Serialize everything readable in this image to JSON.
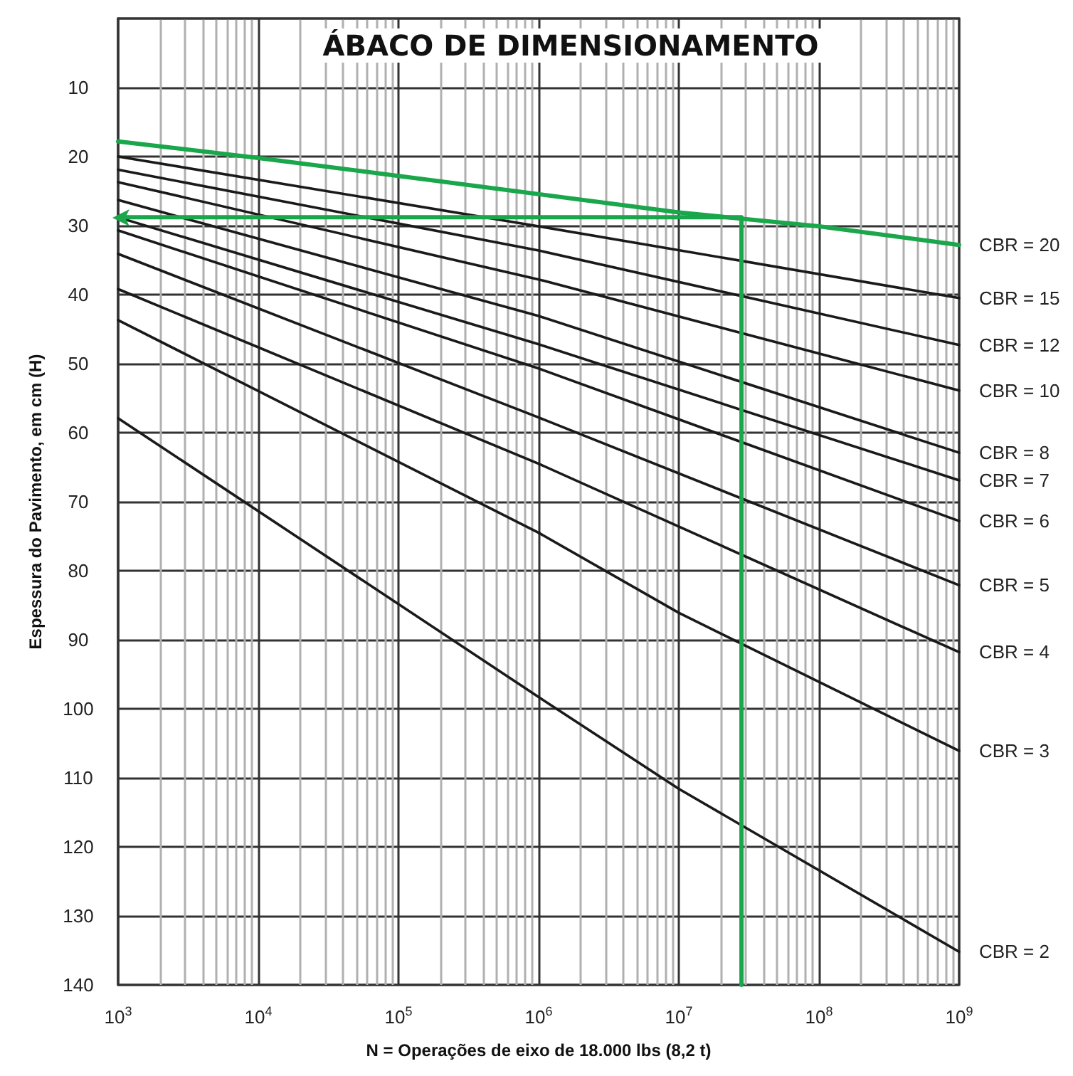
{
  "chart_data": {
    "type": "line",
    "title": "ÁBACO DE DIMENSIONAMENTO",
    "xlabel": "N = Operações de eixo de 18.000 lbs (8,2 t)",
    "ylabel": "Espessura do Pavimento, em cm (H)",
    "log": "x",
    "xlim": [
      1000,
      1000000000
    ],
    "ylim": [
      140,
      0
    ],
    "xticks": [
      {
        "value": 1000,
        "label": "10$^{3}$"
      },
      {
        "value": 2000,
        "label": null
      },
      {
        "value": 3000,
        "label": null
      },
      {
        "value": 4000,
        "label": null
      },
      {
        "value": 5000,
        "label": null
      },
      {
        "value": 6000,
        "label": null
      },
      {
        "value": 7000,
        "label": null
      },
      {
        "value": 8000,
        "label": null
      },
      {
        "value": 9000,
        "label": null
      },
      {
        "value": 10000,
        "label": "10$^{4}$"
      },
      {
        "value": 20000,
        "label": null
      },
      {
        "value": 30000,
        "label": null
      },
      {
        "value": 40000,
        "label": null
      },
      {
        "value": 50000,
        "label": null
      },
      {
        "value": 60000,
        "label": null
      },
      {
        "value": 70000,
        "label": null
      },
      {
        "value": 80000,
        "label": null
      },
      {
        "value": 90000,
        "label": null
      },
      {
        "value": 100000,
        "label": "10$^{5}$"
      },
      {
        "value": 200000,
        "label": null
      },
      {
        "value": 300000,
        "label": null
      },
      {
        "value": 400000,
        "label": null
      },
      {
        "value": 500000,
        "label": null
      },
      {
        "value": 600000,
        "label": null
      },
      {
        "value": 700000,
        "label": null
      },
      {
        "value": 800000,
        "label": null
      },
      {
        "value": 900000,
        "label": null
      },
      {
        "value": 1000000,
        "label": "10$^{6}$"
      },
      {
        "value": 2000000,
        "label": null
      },
      {
        "value": 3000000,
        "label": null
      },
      {
        "value": 4000000,
        "label": null
      },
      {
        "value": 5000000,
        "label": null
      },
      {
        "value": 6000000,
        "label": null
      },
      {
        "value": 7000000,
        "label": null
      },
      {
        "value": 8000000,
        "label": null
      },
      {
        "value": 9000000,
        "label": null
      },
      {
        "value": 10000000,
        "label": "10$^{7}$"
      },
      {
        "value": 20000000,
        "label": null
      },
      {
        "value": 30000000,
        "label": null
      },
      {
        "value": 40000000,
        "label": null
      },
      {
        "value": 50000000,
        "label": null
      },
      {
        "value": 60000000,
        "label": null
      },
      {
        "value": 70000000,
        "label": null
      },
      {
        "value": 80000000,
        "label": null
      },
      {
        "value": 90000000,
        "label": null
      },
      {
        "value": 100000000,
        "label": "10$^{8}$"
      },
      {
        "value": 200000000,
        "label": null
      },
      {
        "value": 300000000,
        "label": null
      },
      {
        "value": 400000000,
        "label": null
      },
      {
        "value": 500000000,
        "label": null
      },
      {
        "value": 600000000,
        "label": null
      },
      {
        "value": 700000000,
        "label": null
      },
      {
        "value": 800000000,
        "label": null
      },
      {
        "value": 900000000,
        "label": null
      },
      {
        "value": 1000000000,
        "label": "10$^{9}$"
      }
    ],
    "yticks": [
      10,
      20,
      30,
      40,
      50,
      60,
      70,
      80,
      90,
      100,
      110,
      120,
      130,
      140
    ],
    "grid": true,
    "legend": false,
    "marker": "none",
    "series": [
      {
        "name": "CBR = 20",
        "color": "#1aa64a",
        "x": [
          1000,
          10000,
          100000,
          10000000,
          100000000,
          1000000000
        ],
        "values": [
          17.8,
          20.2,
          22.8,
          28.1,
          30.1,
          32.8
        ]
      },
      {
        "name": "CBR = 15",
        "color": "#1a1a1a",
        "x": [
          1000,
          1000000,
          1000000000
        ],
        "values": [
          20,
          30.1,
          40.5
        ]
      },
      {
        "name": "CBR = 12",
        "color": "#1a1a1a",
        "x": [
          1000,
          1000000,
          1000000000
        ],
        "values": [
          21.9,
          33.6,
          47.3
        ]
      },
      {
        "name": "CBR = 10",
        "color": "#1a1a1a",
        "x": [
          1000,
          1000000,
          1000000000
        ],
        "values": [
          23.7,
          37.8,
          53.9
        ]
      },
      {
        "name": "CBR = 8",
        "color": "#1a1a1a",
        "x": [
          1000,
          1000000,
          1000000000
        ],
        "values": [
          26.3,
          43.1,
          62.9
        ]
      },
      {
        "name": "CBR = 7",
        "color": "#1a1a1a",
        "x": [
          1000,
          1000000,
          1000000000
        ],
        "values": [
          28.8,
          47.2,
          66.9
        ]
      },
      {
        "name": "CBR = 6",
        "color": "#1a1a1a",
        "x": [
          1000,
          1000000,
          1000000000
        ],
        "values": [
          30.7,
          50.7,
          72.8
        ]
      },
      {
        "name": "CBR = 5",
        "color": "#1a1a1a",
        "x": [
          1000,
          1000000,
          1000000000
        ],
        "values": [
          34.1,
          57.8,
          82.1
        ]
      },
      {
        "name": "CBR = 4",
        "color": "#1a1a1a",
        "x": [
          1000,
          1000000,
          1000000000
        ],
        "values": [
          39.2,
          64.5,
          91.8
        ]
      },
      {
        "name": "CBR = 3",
        "color": "#1a1a1a",
        "x": [
          1000,
          1000000,
          10000000,
          1000000000
        ],
        "values": [
          43.7,
          74.5,
          86.1,
          106.1
        ]
      },
      {
        "name": "CBR = 2",
        "color": "#1a1a1a",
        "x": [
          1000,
          1000000,
          10000000,
          1000000000
        ],
        "values": [
          57.9,
          98.3,
          111.6,
          135.2
        ]
      },
      {
        "color": "#1aa64a",
        "x": [
          1000,
          28000000,
          28000000
        ],
        "values": [
          28.8,
          28.8,
          140
        ]
      }
    ]
  }
}
